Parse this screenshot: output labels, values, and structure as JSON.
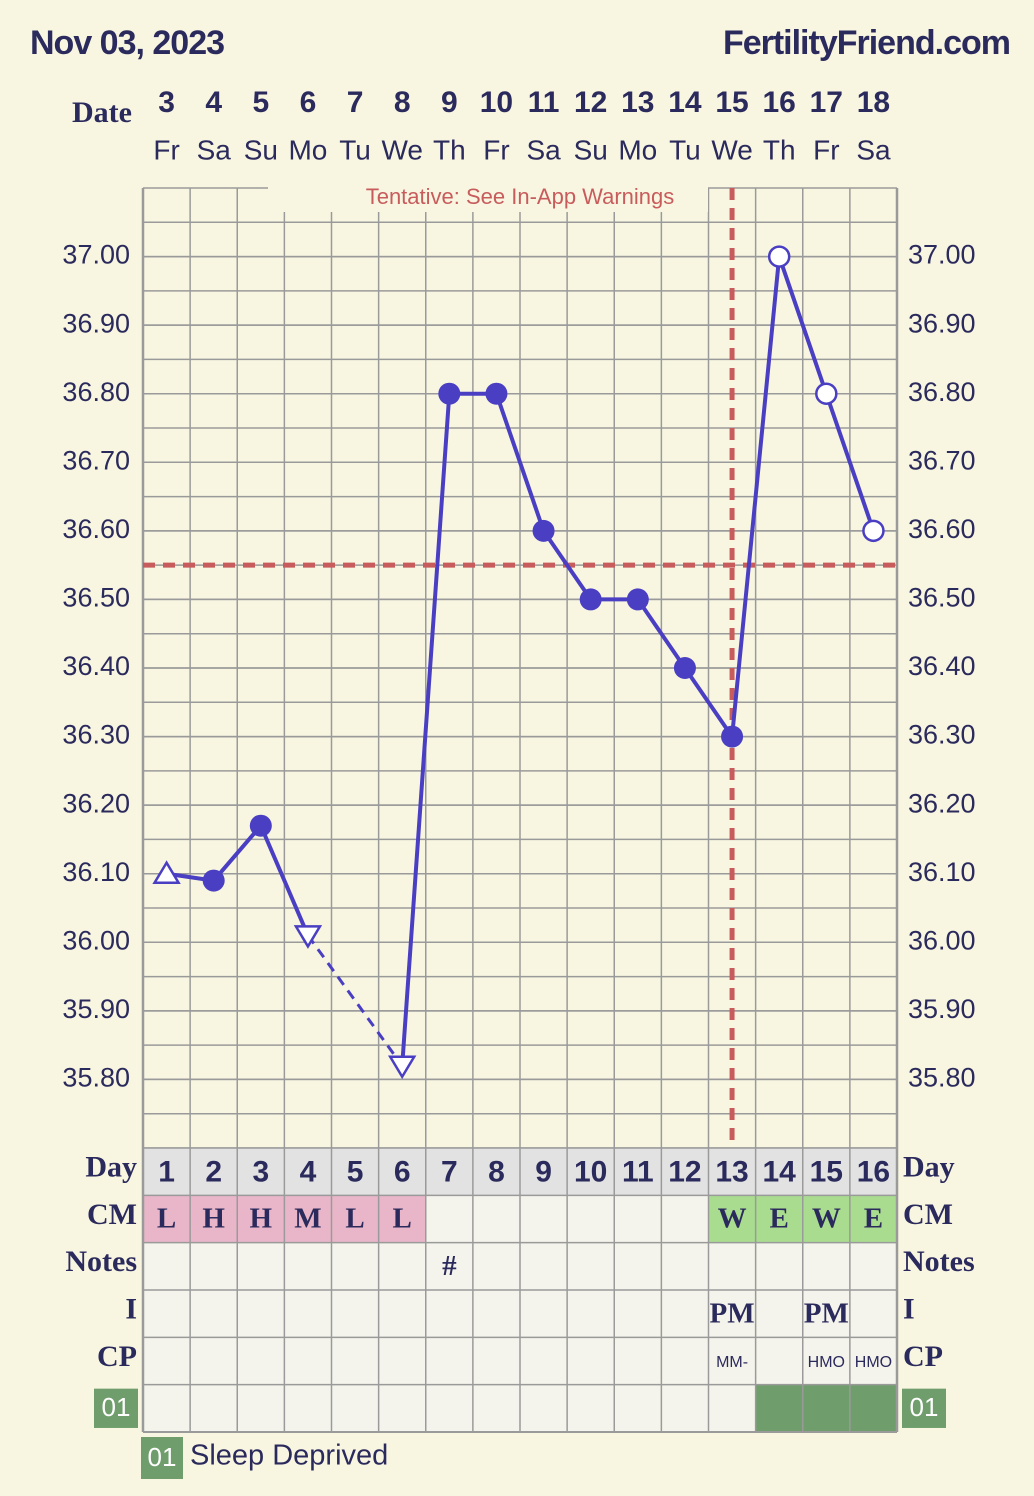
{
  "header": {
    "date": "Nov 03, 2023",
    "brand": "FertilityFriend.com"
  },
  "chart_data": {
    "type": "line",
    "annotation": "Tentative: See In-App Warnings",
    "x_label": "Date",
    "categories": [
      "3",
      "4",
      "5",
      "6",
      "7",
      "8",
      "9",
      "10",
      "11",
      "12",
      "13",
      "14",
      "15",
      "16",
      "17",
      "18"
    ],
    "weekdays": [
      "Fr",
      "Sa",
      "Su",
      "Mo",
      "Tu",
      "We",
      "Th",
      "Fr",
      "Sa",
      "Su",
      "Mo",
      "Tu",
      "We",
      "Th",
      "Fr",
      "Sa"
    ],
    "values": [
      36.1,
      36.09,
      36.17,
      36.01,
      null,
      35.82,
      36.8,
      36.8,
      36.6,
      36.5,
      36.5,
      36.4,
      36.3,
      37.0,
      36.8,
      36.6
    ],
    "markers": [
      "open-triangle-up",
      "circle",
      "circle",
      "open-triangle-down",
      null,
      "open-triangle-down",
      "circle",
      "circle",
      "circle",
      "circle",
      "circle",
      "circle",
      "circle",
      "open-circle",
      "open-circle",
      "open-circle"
    ],
    "color": "#4a3fc2",
    "gap_style": "dashed",
    "ylim": [
      35.7,
      37.1
    ],
    "yticks": [
      {
        "value": 35.8,
        "label": "35.80"
      },
      {
        "value": 35.9,
        "label": "35.90"
      },
      {
        "value": 36.0,
        "label": "36.00"
      },
      {
        "value": 36.1,
        "label": "36.10"
      },
      {
        "value": 36.2,
        "label": "36.20"
      },
      {
        "value": 36.3,
        "label": "36.30"
      },
      {
        "value": 36.4,
        "label": "36.40"
      },
      {
        "value": 36.5,
        "label": "36.50"
      },
      {
        "value": 36.6,
        "label": "36.60"
      },
      {
        "value": 36.7,
        "label": "36.70"
      },
      {
        "value": 36.8,
        "label": "36.80"
      },
      {
        "value": 36.9,
        "label": "36.90"
      },
      {
        "value": 37.0,
        "label": "37.00"
      }
    ],
    "grid": true,
    "minor_grid": true,
    "coverline": 36.55,
    "coverline_color": "#c85c5c",
    "ovulation_day": 13
  },
  "table": {
    "rows": [
      {
        "label": "Day",
        "cells": [
          1,
          2,
          3,
          4,
          5,
          6,
          7,
          8,
          9,
          10,
          11,
          12,
          13,
          14,
          15,
          16
        ],
        "fill": "#e2e2e2"
      },
      {
        "label": "CM",
        "cells": [
          "L",
          "H",
          "H",
          "M",
          "L",
          "L",
          null,
          null,
          null,
          null,
          null,
          null,
          "W",
          "E",
          "W",
          "E"
        ],
        "fills": [
          "#e8b6c8",
          "#e8b6c8",
          "#e8b6c8",
          "#e8b6c8",
          "#e8b6c8",
          "#e8b6c8",
          null,
          null,
          null,
          null,
          null,
          null,
          "#a9dc8e",
          "#a9dc8e",
          "#a9dc8e",
          "#a9dc8e"
        ]
      },
      {
        "label": "Notes",
        "cells": [
          null,
          null,
          null,
          null,
          null,
          null,
          "#",
          null,
          null,
          null,
          null,
          null,
          null,
          null,
          null,
          null
        ]
      },
      {
        "label": "I",
        "cells": [
          null,
          null,
          null,
          null,
          null,
          null,
          null,
          null,
          null,
          null,
          null,
          null,
          "PM",
          null,
          "PM",
          null
        ]
      },
      {
        "label": "CP",
        "cells": [
          null,
          null,
          null,
          null,
          null,
          null,
          null,
          null,
          null,
          null,
          null,
          null,
          "MM-",
          null,
          "HMO",
          "HMO"
        ]
      },
      {
        "label": "01",
        "badge": "#6f9e6c",
        "fills": [
          null,
          null,
          null,
          null,
          null,
          null,
          null,
          null,
          null,
          null,
          null,
          null,
          null,
          "#6f9e6c",
          "#6f9e6c",
          "#6f9e6c"
        ]
      }
    ]
  },
  "legend": {
    "code": "01",
    "text": "Sleep Deprived",
    "color": "#6f9e6c"
  }
}
